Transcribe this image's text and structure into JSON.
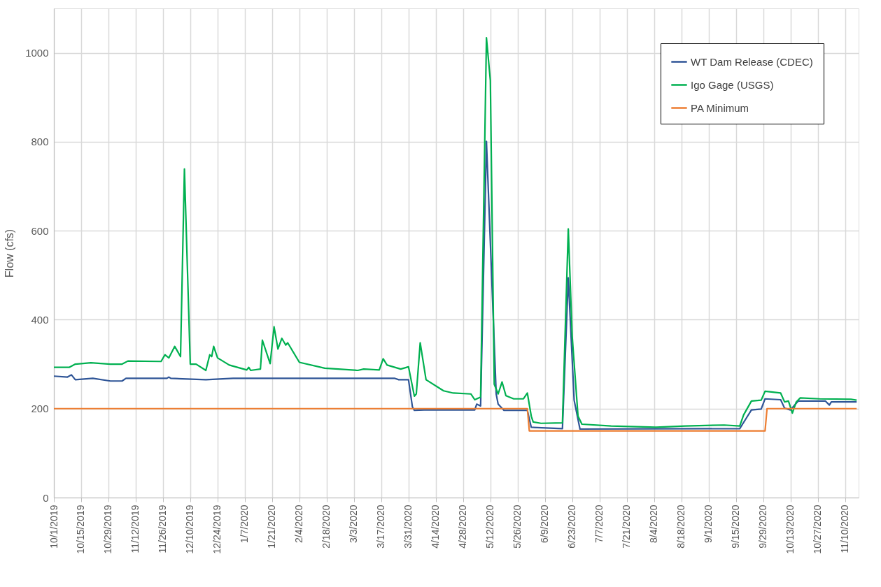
{
  "chart_data": {
    "type": "line",
    "ylabel": "Flow (cfs)",
    "ylim": [
      0,
      1100
    ],
    "yticks": [
      0,
      200,
      400,
      600,
      800,
      1000
    ],
    "xlim": [
      "2019-10-01",
      "2020-11-17"
    ],
    "xticks": [
      {
        "value": "2019-10-01",
        "label": "10/1/2019"
      },
      {
        "value": "2019-10-15",
        "label": "10/15/2019"
      },
      {
        "value": "2019-10-29",
        "label": "10/29/2019"
      },
      {
        "value": "2019-11-12",
        "label": "11/12/2019"
      },
      {
        "value": "2019-11-26",
        "label": "11/26/2019"
      },
      {
        "value": "2019-12-10",
        "label": "12/10/2019"
      },
      {
        "value": "2019-12-24",
        "label": "12/24/2019"
      },
      {
        "value": "2020-01-07",
        "label": "1/7/2020"
      },
      {
        "value": "2020-01-21",
        "label": "1/21/2020"
      },
      {
        "value": "2020-02-04",
        "label": "2/4/2020"
      },
      {
        "value": "2020-02-18",
        "label": "2/18/2020"
      },
      {
        "value": "2020-03-03",
        "label": "3/3/2020"
      },
      {
        "value": "2020-03-17",
        "label": "3/17/2020"
      },
      {
        "value": "2020-03-31",
        "label": "3/31/2020"
      },
      {
        "value": "2020-04-14",
        "label": "4/14/2020"
      },
      {
        "value": "2020-04-28",
        "label": "4/28/2020"
      },
      {
        "value": "2020-05-12",
        "label": "5/12/2020"
      },
      {
        "value": "2020-05-26",
        "label": "5/26/2020"
      },
      {
        "value": "2020-06-09",
        "label": "6/9/2020"
      },
      {
        "value": "2020-06-23",
        "label": "6/23/2020"
      },
      {
        "value": "2020-07-07",
        "label": "7/7/2020"
      },
      {
        "value": "2020-07-21",
        "label": "7/21/2020"
      },
      {
        "value": "2020-08-04",
        "label": "8/4/2020"
      },
      {
        "value": "2020-08-18",
        "label": "8/18/2020"
      },
      {
        "value": "2020-09-01",
        "label": "9/1/2020"
      },
      {
        "value": "2020-09-15",
        "label": "9/15/2020"
      },
      {
        "value": "2020-09-29",
        "label": "9/29/2020"
      },
      {
        "value": "2020-10-13",
        "label": "10/13/2020"
      },
      {
        "value": "2020-10-27",
        "label": "10/27/2020"
      },
      {
        "value": "2020-11-10",
        "label": "11/10/2020"
      }
    ],
    "grid": true,
    "legend": "top right",
    "marker": "none",
    "line_style": "solid",
    "series": [
      {
        "name": "WT Dam Release (CDEC)",
        "color": "#2f5597",
        "x": [
          "2019-10-01",
          "2019-10-08",
          "2019-10-10",
          "2019-10-12",
          "2019-10-21",
          "2019-10-30",
          "2019-11-05",
          "2019-11-07",
          "2019-11-28",
          "2019-11-29",
          "2019-11-30",
          "2019-12-18",
          "2020-01-01",
          "2020-03-24",
          "2020-03-26",
          "2020-03-31",
          "2020-04-02",
          "2020-04-03",
          "2020-04-08",
          "2020-05-04",
          "2020-05-05",
          "2020-05-07",
          "2020-05-10",
          "2020-05-15",
          "2020-05-16",
          "2020-05-19",
          "2020-05-31",
          "2020-06-02",
          "2020-06-18",
          "2020-06-21",
          "2020-06-24",
          "2020-06-27",
          "2020-09-17",
          "2020-09-20",
          "2020-09-23",
          "2020-09-28",
          "2020-09-30",
          "2020-10-08",
          "2020-10-10",
          "2020-10-13",
          "2020-10-16",
          "2020-10-17",
          "2020-10-31",
          "2020-11-02",
          "2020-11-03",
          "2020-11-16"
        ],
        "values": [
          273,
          271,
          276,
          265,
          268,
          262,
          262,
          268,
          268,
          271,
          268,
          265,
          268,
          268,
          265,
          265,
          204,
          196,
          197,
          197,
          210,
          206,
          801,
          233,
          210,
          196,
          196,
          158,
          155,
          494,
          219,
          154,
          155,
          176,
          197,
          199,
          222,
          220,
          201,
          197,
          212,
          217,
          217,
          208,
          215,
          215
        ]
      },
      {
        "name": "Igo Gage (USGS)",
        "color": "#00b050",
        "x": [
          "2019-10-01",
          "2019-10-09",
          "2019-10-12",
          "2019-10-20",
          "2019-10-30",
          "2019-11-05",
          "2019-11-08",
          "2019-11-25",
          "2019-11-27",
          "2019-11-29",
          "2019-12-02",
          "2019-12-05",
          "2019-12-07",
          "2019-12-10",
          "2019-12-13",
          "2019-12-18",
          "2019-12-20",
          "2019-12-21",
          "2019-12-22",
          "2019-12-24",
          "2019-12-30",
          "2020-01-08",
          "2020-01-09",
          "2020-01-10",
          "2020-01-15",
          "2020-01-16",
          "2020-01-20",
          "2020-01-22",
          "2020-01-24",
          "2020-01-26",
          "2020-01-28",
          "2020-01-29",
          "2020-02-04",
          "2020-02-17",
          "2020-03-05",
          "2020-03-08",
          "2020-03-16",
          "2020-03-18",
          "2020-03-20",
          "2020-03-27",
          "2020-03-31",
          "2020-04-03",
          "2020-04-04",
          "2020-04-06",
          "2020-04-09",
          "2020-04-18",
          "2020-04-23",
          "2020-05-02",
          "2020-05-04",
          "2020-05-07",
          "2020-05-10",
          "2020-05-12",
          "2020-05-14",
          "2020-05-16",
          "2020-05-18",
          "2020-05-20",
          "2020-05-24",
          "2020-05-29",
          "2020-05-31",
          "2020-06-02",
          "2020-06-03",
          "2020-06-07",
          "2020-06-18",
          "2020-06-21",
          "2020-06-23",
          "2020-06-26",
          "2020-06-28",
          "2020-07-13",
          "2020-08-05",
          "2020-08-20",
          "2020-09-09",
          "2020-09-17",
          "2020-09-19",
          "2020-09-23",
          "2020-09-28",
          "2020-09-30",
          "2020-10-08",
          "2020-10-10",
          "2020-10-12",
          "2020-10-14",
          "2020-10-16",
          "2020-10-18",
          "2020-10-28",
          "2020-11-13",
          "2020-11-16"
        ],
        "values": [
          293,
          293,
          300,
          303,
          300,
          300,
          307,
          306,
          321,
          314,
          340,
          317,
          739,
          300,
          300,
          286,
          321,
          317,
          340,
          314,
          298,
          287,
          293,
          286,
          289,
          354,
          301,
          384,
          334,
          358,
          343,
          348,
          304,
          291,
          286,
          289,
          287,
          312,
          298,
          289,
          294,
          228,
          233,
          348,
          265,
          240,
          235,
          233,
          220,
          226,
          1034,
          938,
          255,
          233,
          260,
          229,
          222,
          222,
          235,
          183,
          170,
          167,
          168,
          604,
          363,
          183,
          165,
          161,
          158,
          161,
          163,
          161,
          186,
          217,
          219,
          239,
          235,
          215,
          217,
          190,
          215,
          224,
          222,
          221,
          219
        ]
      },
      {
        "name": "PA Minimum",
        "color": "#ed7d31",
        "x": [
          "2019-10-01",
          "2020-05-31",
          "2020-06-01",
          "2020-09-30",
          "2020-10-01",
          "2020-11-16"
        ],
        "values": [
          200,
          200,
          150,
          150,
          200,
          200
        ]
      }
    ]
  }
}
